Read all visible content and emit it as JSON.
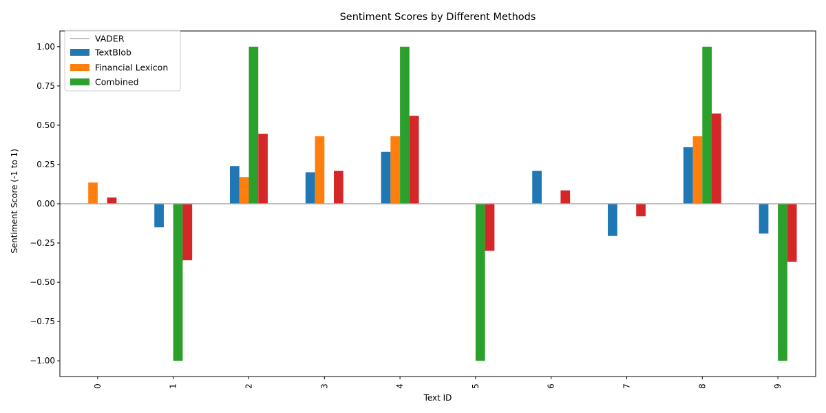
{
  "chart_data": {
    "type": "bar",
    "title": "Sentiment Scores by Different Methods",
    "xlabel": "Text ID",
    "ylabel": "Sentiment Score (-1 to 1)",
    "categories": [
      "0",
      "1",
      "2",
      "3",
      "4",
      "5",
      "6",
      "7",
      "8",
      "9"
    ],
    "ylim": [
      -1.1,
      1.1
    ],
    "yticks": [
      -1.0,
      -0.75,
      -0.5,
      -0.25,
      0.0,
      0.25,
      0.5,
      0.75,
      1.0
    ],
    "ytick_labels": [
      "−1.00",
      "−0.75",
      "−0.50",
      "−0.25",
      "0.00",
      "0.25",
      "0.50",
      "0.75",
      "1.00"
    ],
    "zero_line": {
      "label": "VADER",
      "color": "#a9a9a9"
    },
    "grid": false,
    "legend_position": "top-left",
    "series": [
      {
        "name": "TextBlob",
        "color": "#1f77b4",
        "values": [
          0.0,
          -0.15,
          0.24,
          0.2,
          0.33,
          0.0,
          0.21,
          -0.205,
          0.36,
          -0.19
        ]
      },
      {
        "name": "Financial Lexicon",
        "color": "#ff7f0e",
        "values": [
          0.135,
          0.0,
          0.17,
          0.43,
          0.43,
          0.0,
          0.0,
          0.0,
          0.43,
          0.0
        ]
      },
      {
        "name": "Combined",
        "color": "#2ca02c",
        "values": [
          0.0,
          -1.0,
          1.0,
          0.0,
          1.0,
          -1.0,
          0.0,
          0.0,
          1.0,
          -1.0
        ]
      },
      {
        "name": "",
        "color": "#d62728",
        "values": [
          0.04,
          -0.36,
          0.445,
          0.21,
          0.56,
          -0.3,
          0.085,
          -0.08,
          0.575,
          -0.37
        ]
      }
    ]
  }
}
